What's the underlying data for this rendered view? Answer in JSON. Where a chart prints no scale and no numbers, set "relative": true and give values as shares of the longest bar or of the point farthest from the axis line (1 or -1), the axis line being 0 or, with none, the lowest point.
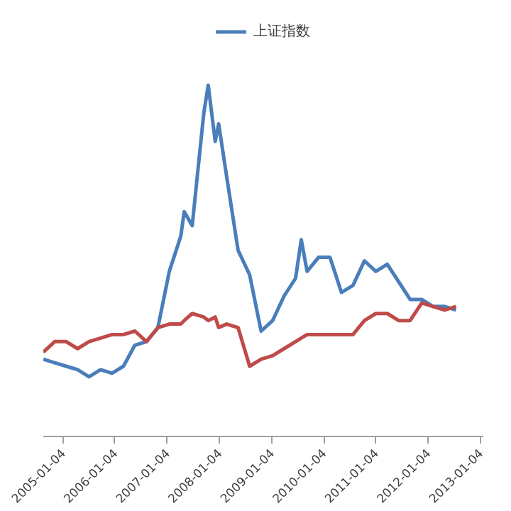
{
  "chart_data": {
    "type": "line",
    "relative": true,
    "legend": "top",
    "grid": false,
    "marker": "none",
    "line_style": "solid",
    "x": [
      "2004-08-21",
      "2004-11-09",
      "2005-01-28",
      "2005-04-18",
      "2005-07-07",
      "2005-09-26",
      "2005-12-15",
      "2006-03-05",
      "2006-05-24",
      "2006-08-13",
      "2006-11-01",
      "2007-01-20",
      "2007-04-10",
      "2007-05-04",
      "2007-06-29",
      "2007-09-18",
      "2007-10-19",
      "2007-12-07",
      "2007-12-31",
      "2008-02-25",
      "2008-05-15",
      "2008-08-04",
      "2008-10-23",
      "2009-01-12",
      "2009-04-02",
      "2009-06-21",
      "2009-07-31",
      "2009-09-10",
      "2009-11-29",
      "2010-02-17",
      "2010-05-08",
      "2010-07-28",
      "2010-10-16",
      "2011-01-04",
      "2011-03-25",
      "2011-06-13",
      "2011-09-01",
      "2011-11-21",
      "2012-02-09",
      "2012-04-29",
      "2012-07-18"
    ],
    "xlim": [
      "2004-08-21",
      "2013-01-25"
    ],
    "xticks": [
      {
        "value": "2005-01-04",
        "label": "2005-01-04"
      },
      {
        "value": "2006-01-04",
        "label": "2006-01-04"
      },
      {
        "value": "2007-01-04",
        "label": "2007-01-04"
      },
      {
        "value": "2008-01-04",
        "label": "2008-01-04"
      },
      {
        "value": "2009-01-04",
        "label": "2009-01-04"
      },
      {
        "value": "2010-01-04",
        "label": "2010-01-04"
      },
      {
        "value": "2011-01-04",
        "label": "2011-01-04"
      },
      {
        "value": "2012-01-04",
        "label": "2012-01-04"
      },
      {
        "value": "2013-01-04",
        "label": "2013-01-04"
      }
    ],
    "series": [
      {
        "name": "上证指数",
        "color": "#4a7ebb",
        "values": [
          0.22,
          0.21,
          0.2,
          0.19,
          0.17,
          0.19,
          0.18,
          0.2,
          0.26,
          0.27,
          0.31,
          0.47,
          0.57,
          0.64,
          0.6,
          0.92,
          1.0,
          0.84,
          0.89,
          0.74,
          0.53,
          0.46,
          0.3,
          0.33,
          0.4,
          0.45,
          0.56,
          0.47,
          0.51,
          0.51,
          0.41,
          0.43,
          0.5,
          0.47,
          0.49,
          0.44,
          0.39,
          0.39,
          0.37,
          0.37,
          0.36
        ]
      },
      {
        "color": "#be4b48",
        "values": [
          0.24,
          0.27,
          0.27,
          0.25,
          0.27,
          0.28,
          0.29,
          0.29,
          0.3,
          0.27,
          0.31,
          0.32,
          0.32,
          0.33,
          0.35,
          0.34,
          0.33,
          0.34,
          0.31,
          0.32,
          0.31,
          0.2,
          0.22,
          0.23,
          0.25,
          0.27,
          0.28,
          0.29,
          0.29,
          0.29,
          0.29,
          0.29,
          0.33,
          0.35,
          0.35,
          0.33,
          0.33,
          0.38,
          0.37,
          0.36,
          0.37
        ]
      }
    ]
  }
}
